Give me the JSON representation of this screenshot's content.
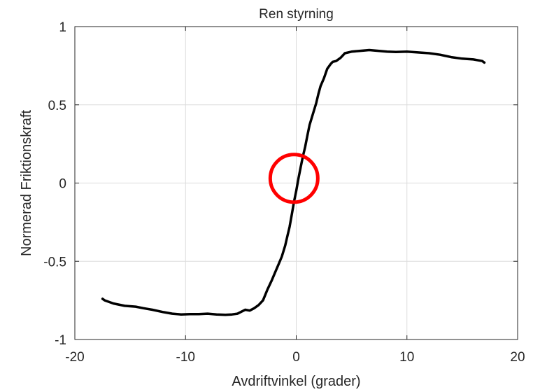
{
  "chart_data": {
    "type": "line",
    "title": "Ren styrning",
    "xlabel": "Avdriftvinkel (grader)",
    "ylabel": "Normerad Friktionskraft",
    "xlim": [
      -20,
      20
    ],
    "ylim": [
      -1,
      1
    ],
    "xticks": [
      -20,
      -10,
      0,
      10,
      20
    ],
    "yticks": [
      -1,
      -0.5,
      0,
      0.5,
      1
    ],
    "xtick_labels": [
      "-20",
      "-10",
      "0",
      "10",
      "20"
    ],
    "ytick_labels": [
      "-1",
      "-0.5",
      "0",
      "0.5",
      "1"
    ],
    "grid": true,
    "line_color": "#000000",
    "series": [
      {
        "x": [
          -17.5,
          -17.3,
          -16.5,
          -15.5,
          -14.5,
          -13.8,
          -13.0,
          -12.0,
          -11.2,
          -10.4,
          -9.6,
          -8.8,
          -8.0,
          -7.2,
          -6.4,
          -5.8,
          -5.3,
          -4.9,
          -4.6,
          -4.2,
          -3.8,
          -3.4,
          -3.0,
          -2.6,
          -2.2,
          -1.9,
          -1.6,
          -1.3,
          -1.0,
          -0.8,
          -0.6,
          -0.4,
          -0.2,
          0.0,
          0.2,
          0.4,
          0.6,
          0.8,
          1.0,
          1.2,
          1.5,
          1.8,
          2.0,
          2.2,
          2.5,
          2.8,
          3.1,
          3.3,
          3.6,
          4.0,
          4.4,
          5.0,
          5.8,
          6.6,
          7.4,
          8.2,
          9.0,
          10.0,
          11.0,
          12.0,
          13.0,
          14.0,
          15.0,
          16.0,
          16.8,
          17.0
        ],
        "y": [
          -0.74,
          -0.75,
          -0.77,
          -0.785,
          -0.79,
          -0.8,
          -0.81,
          -0.825,
          -0.835,
          -0.84,
          -0.838,
          -0.838,
          -0.835,
          -0.84,
          -0.842,
          -0.84,
          -0.835,
          -0.82,
          -0.81,
          -0.815,
          -0.8,
          -0.78,
          -0.75,
          -0.68,
          -0.62,
          -0.57,
          -0.52,
          -0.47,
          -0.4,
          -0.34,
          -0.28,
          -0.2,
          -0.12,
          -0.05,
          0.03,
          0.1,
          0.17,
          0.23,
          0.3,
          0.37,
          0.44,
          0.51,
          0.57,
          0.62,
          0.67,
          0.73,
          0.76,
          0.775,
          0.78,
          0.8,
          0.83,
          0.84,
          0.845,
          0.85,
          0.845,
          0.84,
          0.838,
          0.84,
          0.835,
          0.83,
          0.82,
          0.805,
          0.795,
          0.79,
          0.78,
          0.77
        ]
      }
    ],
    "annotation": {
      "type": "circle",
      "x": -0.2,
      "y": 0.03,
      "color": "#ff0000"
    }
  }
}
